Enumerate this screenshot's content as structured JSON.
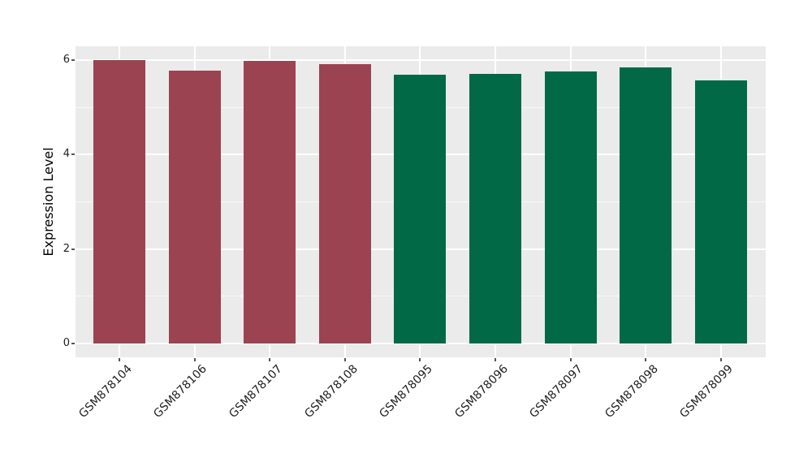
{
  "chart_data": {
    "type": "bar",
    "title": "",
    "xlabel": "",
    "ylabel": "Expression Level",
    "categories": [
      "GSM878104",
      "GSM878106",
      "GSM878107",
      "GSM878108",
      "GSM878095",
      "GSM878096",
      "GSM878097",
      "GSM878098",
      "GSM878099"
    ],
    "values": [
      6.0,
      5.78,
      5.99,
      5.92,
      5.7,
      5.71,
      5.76,
      5.85,
      5.57
    ],
    "bar_colors": [
      "#9B4351",
      "#9B4351",
      "#9B4351",
      "#9B4351",
      "#026946",
      "#026946",
      "#026946",
      "#026946",
      "#026946"
    ],
    "ylim": [
      -0.3,
      6.3
    ],
    "yticks": [
      0,
      2,
      4,
      6
    ],
    "ytick_labels": [
      "0",
      "2",
      "4",
      "6"
    ],
    "minor_yticks": [
      1,
      3,
      5
    ],
    "grid": true,
    "grid_color": "#FFFFFF",
    "panel_bg": "#EBEBEB",
    "legend": false
  }
}
